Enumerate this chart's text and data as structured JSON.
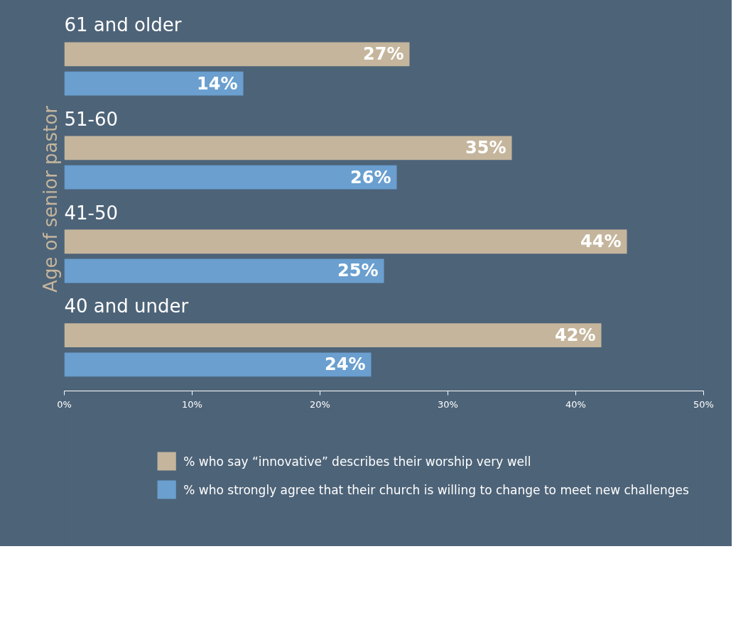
{
  "chart_data": {
    "type": "bar",
    "orientation": "horizontal",
    "ylabel": "Age of senior pastor",
    "categories": [
      "61 and older",
      "51-60",
      "41-50",
      "40 and under"
    ],
    "series": [
      {
        "name": "% who say “innovative” describes their worship very well",
        "color": "#c4b59c",
        "values": [
          27,
          35,
          44,
          42
        ],
        "value_labels": [
          "27%",
          "35%",
          "44%",
          "42%"
        ]
      },
      {
        "name": "% who strongly agree that their church is willing to change to meet new challenges",
        "color": "#6a9fcf",
        "values": [
          14,
          26,
          25,
          24
        ],
        "value_labels": [
          "14%",
          "26%",
          "25%",
          "24%"
        ]
      }
    ],
    "xlim": [
      0,
      50
    ],
    "xticks": [
      {
        "value": 0,
        "label": "0%"
      },
      {
        "value": 10,
        "label": "10%"
      },
      {
        "value": 20,
        "label": "20%"
      },
      {
        "value": 30,
        "label": "30%"
      },
      {
        "value": 40,
        "label": "40%"
      },
      {
        "value": 50,
        "label": "50%"
      }
    ],
    "grid": false,
    "legend": "bottom"
  }
}
